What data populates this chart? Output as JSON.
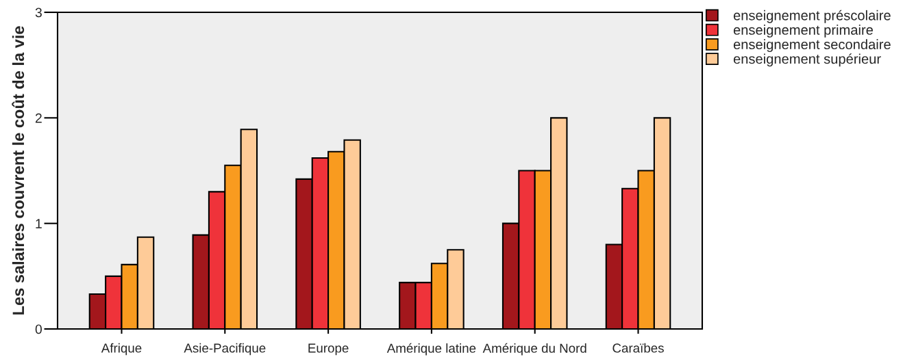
{
  "chart_data": {
    "type": "bar",
    "ylabel": "Les salaires couvrent le coût de la vie",
    "categories": [
      "Afrique",
      "Asie-Pacifique",
      "Europe",
      "Amérique latine",
      "Amérique du Nord",
      "Caraïbes"
    ],
    "series": [
      {
        "name": "enseignement préscolaire",
        "color": "#a3171c",
        "values": [
          0.33,
          0.89,
          1.42,
          0.44,
          1.0,
          0.8
        ]
      },
      {
        "name": "enseignement primaire",
        "color": "#ef333a",
        "values": [
          0.5,
          1.3,
          1.62,
          0.44,
          1.5,
          1.33
        ]
      },
      {
        "name": "enseignement secondaire",
        "color": "#f99b1f",
        "values": [
          0.61,
          1.55,
          1.68,
          0.62,
          1.5,
          1.5
        ]
      },
      {
        "name": "enseignement supérieur",
        "color": "#fecb98",
        "values": [
          0.87,
          1.89,
          1.79,
          0.75,
          2.0,
          2.0
        ]
      }
    ],
    "ylim": [
      0,
      3
    ],
    "yticks": [
      0,
      1,
      2,
      3
    ],
    "grid": false,
    "legend": "top right"
  }
}
